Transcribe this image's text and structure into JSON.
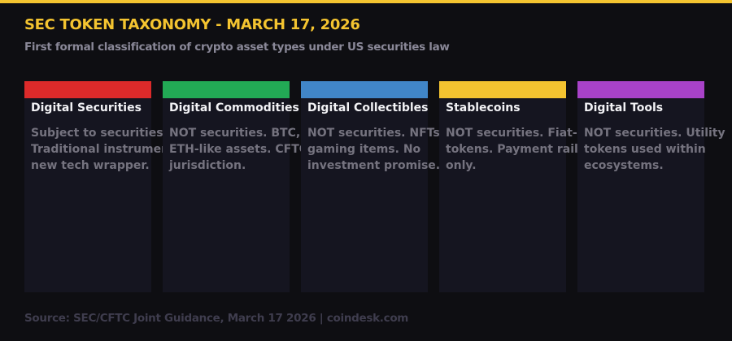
{
  "header": {
    "title": "SEC TOKEN TAXONOMY - MARCH 17, 2026",
    "subtitle": "First formal classification of crypto asset types under US securities law",
    "accent_color": "#f4c430"
  },
  "cards": [
    {
      "name": "Digital Securities",
      "color": "#dc2a2a",
      "lines": [
        "Subject to securities",
        "Traditional instrumen",
        "new tech wrapper."
      ]
    },
    {
      "name": "Digital Commodities",
      "color": "#22aa55",
      "lines": [
        "NOT securities. BTC,",
        "ETH-like assets. CFTC",
        "jurisdiction."
      ]
    },
    {
      "name": "Digital Collectibles",
      "color": "#4186c8",
      "lines": [
        "NOT securities. NFTs",
        "gaming items. No",
        "investment promise."
      ]
    },
    {
      "name": "Stablecoins",
      "color": "#f4c430",
      "lines": [
        "NOT securities. Fiat-",
        "tokens. Payment rail",
        "only."
      ]
    },
    {
      "name": "Digital Tools",
      "color": "#a842c8",
      "lines": [
        "NOT securities. Utility",
        "tokens used within",
        "ecosystems."
      ]
    }
  ],
  "footer": {
    "source": "Source: SEC/CFTC Joint Guidance, March 17 2026 | coindesk.com"
  }
}
